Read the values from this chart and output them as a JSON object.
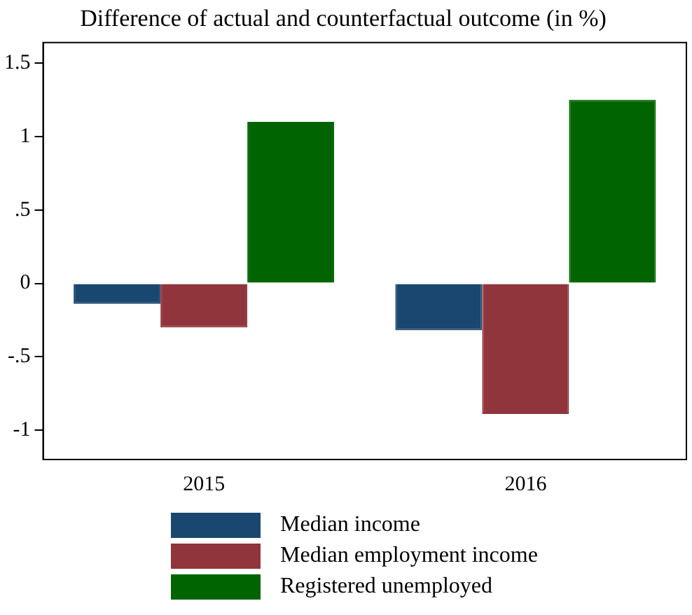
{
  "chart_data": {
    "type": "bar",
    "title": "Difference of actual and counterfactual outcome (in %)",
    "categories": [
      "2015",
      "2016"
    ],
    "series": [
      {
        "name": "Median income",
        "color": "#1a476f",
        "values": [
          -0.14,
          -0.32
        ]
      },
      {
        "name": "Median employment income",
        "color": "#90353b",
        "values": [
          -0.3,
          -0.89
        ]
      },
      {
        "name": "Registered unemployed",
        "color": "#006400",
        "values": [
          1.1,
          1.25
        ]
      }
    ],
    "ylim": [
      -1.2,
      1.64
    ],
    "yticks": [
      {
        "value": -1,
        "label": "-1"
      },
      {
        "value": -0.5,
        "label": "-.5"
      },
      0,
      {
        "value": 0.5,
        "label": ".5"
      },
      1,
      1.5
    ],
    "grid": false,
    "legend": "bottom"
  }
}
